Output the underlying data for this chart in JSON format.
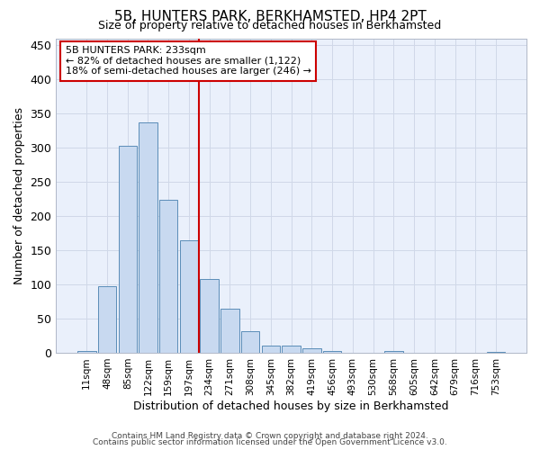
{
  "title1": "5B, HUNTERS PARK, BERKHAMSTED, HP4 2PT",
  "title2": "Size of property relative to detached houses in Berkhamsted",
  "xlabel": "Distribution of detached houses by size in Berkhamsted",
  "ylabel": "Number of detached properties",
  "footer1": "Contains HM Land Registry data © Crown copyright and database right 2024.",
  "footer2": "Contains public sector information licensed under the Open Government Licence v3.0.",
  "bar_labels": [
    "11sqm",
    "48sqm",
    "85sqm",
    "122sqm",
    "159sqm",
    "197sqm",
    "234sqm",
    "271sqm",
    "308sqm",
    "345sqm",
    "382sqm",
    "419sqm",
    "456sqm",
    "493sqm",
    "530sqm",
    "568sqm",
    "605sqm",
    "642sqm",
    "679sqm",
    "716sqm",
    "753sqm"
  ],
  "bar_values": [
    3,
    97,
    303,
    337,
    224,
    165,
    108,
    65,
    32,
    11,
    10,
    7,
    3,
    0,
    0,
    2,
    0,
    0,
    0,
    0,
    1
  ],
  "bar_color": "#c8d9f0",
  "bar_edge_color": "#5b8db8",
  "grid_color": "#d0d8e8",
  "bg_color": "#eaf0fb",
  "vline_x_index": 6,
  "vline_color": "#cc0000",
  "annotation_line1": "5B HUNTERS PARK: 233sqm",
  "annotation_line2": "← 82% of detached houses are smaller (1,122)",
  "annotation_line3": "18% of semi-detached houses are larger (246) →",
  "annotation_box_color": "#ffffff",
  "annotation_border_color": "#cc0000",
  "ylim": [
    0,
    460
  ],
  "yticks": [
    0,
    50,
    100,
    150,
    200,
    250,
    300,
    350,
    400,
    450
  ],
  "title1_fontsize": 11,
  "title2_fontsize": 9,
  "ylabel_fontsize": 9,
  "xlabel_fontsize": 9,
  "annotation_fontsize": 8,
  "footer_fontsize": 6.5
}
